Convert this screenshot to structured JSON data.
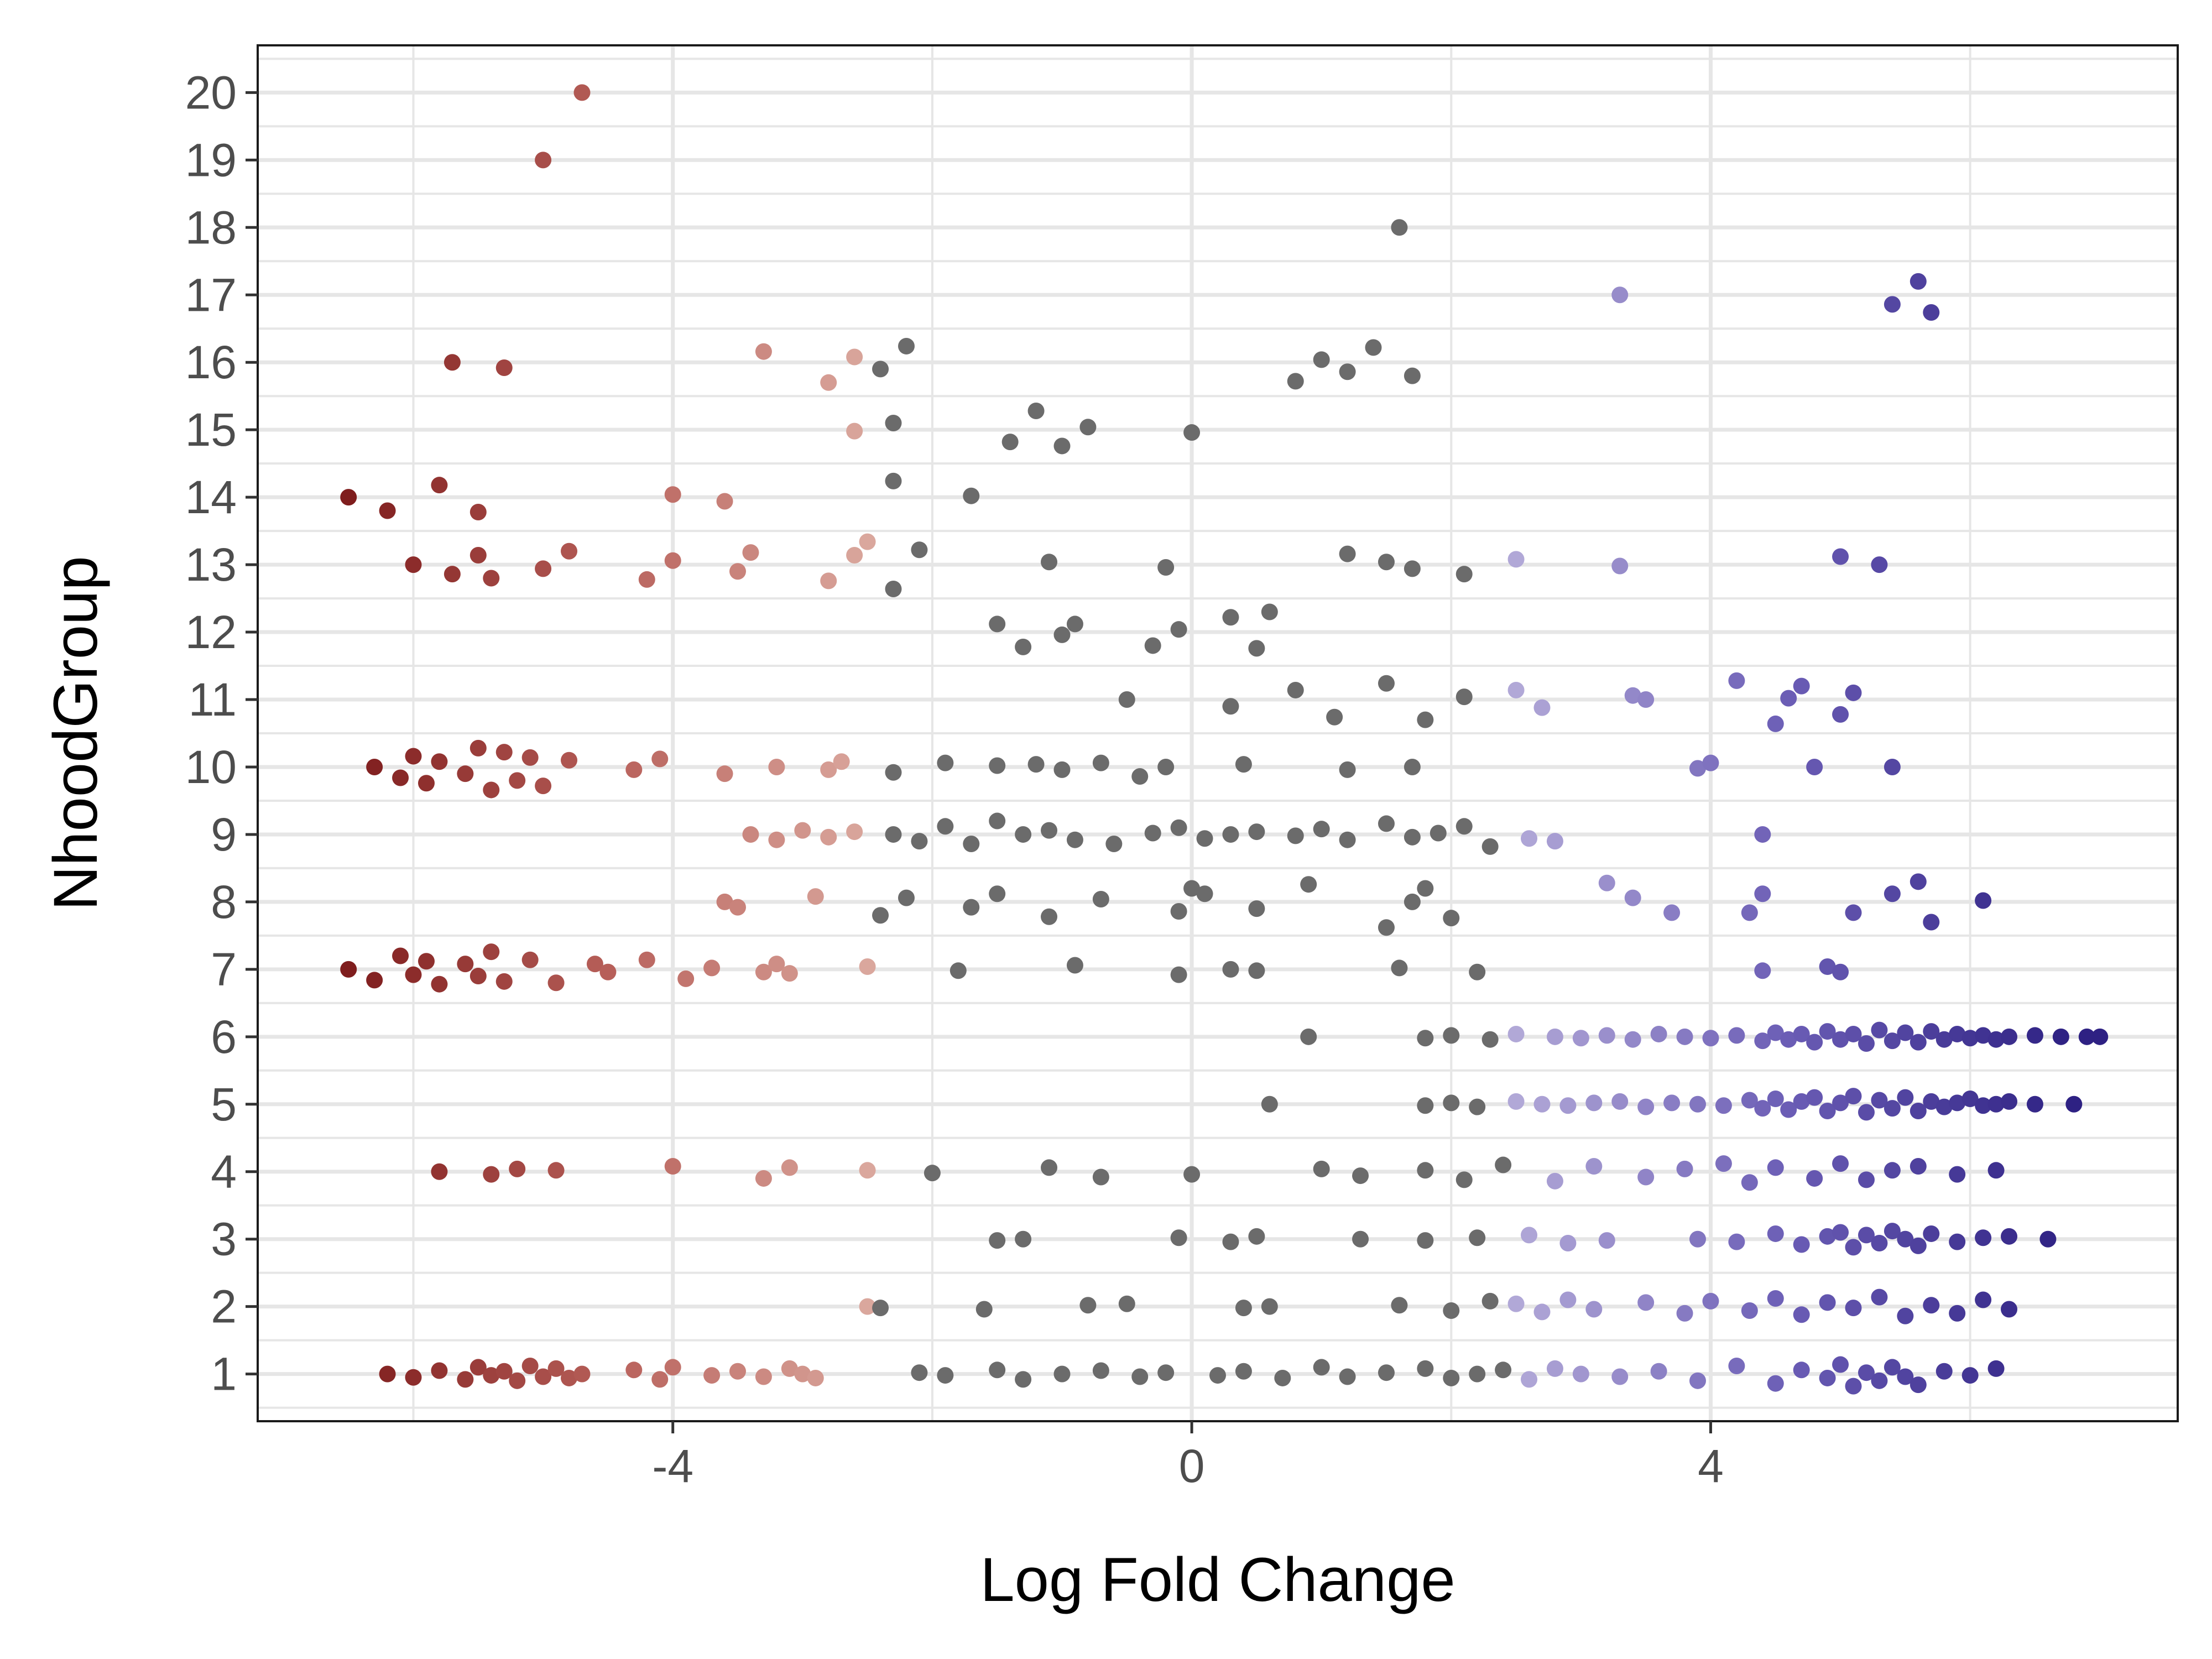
{
  "chart_data": {
    "type": "scatter",
    "title": "",
    "xlabel": "Log Fold Change",
    "ylabel": "NhoodGroup",
    "xlim": [
      -7.2,
      7.6
    ],
    "ylim": [
      0.3,
      20.7
    ],
    "x_ticks": [
      -4,
      0,
      4
    ],
    "x_tick_labels": [
      "-4",
      "0",
      "4"
    ],
    "y_ticks": [
      1,
      2,
      3,
      4,
      5,
      6,
      7,
      8,
      9,
      10,
      11,
      12,
      13,
      14,
      15,
      16,
      17,
      18,
      19,
      20
    ],
    "y_tick_labels": [
      "1",
      "2",
      "3",
      "4",
      "5",
      "6",
      "7",
      "8",
      "9",
      "10",
      "11",
      "12",
      "13",
      "14",
      "15",
      "16",
      "17",
      "18",
      "19",
      "20"
    ],
    "grid": true,
    "legend": "none",
    "colors": {
      "neg_strong": "#7f1d1d",
      "neg_mid": "#b8615b",
      "neg_light": "#dba99f",
      "neutral": "#6b6b6b",
      "pos_light": "#b3aad8",
      "pos_mid": "#6b5db5",
      "pos_strong": "#2e2183",
      "grid": "#e6e6e6",
      "frame": "#1a1a1a"
    },
    "color_rule": "points with |logFC| < ~2.5 are grey; negative values shade from light pink to dark red, positive values from light lavender to dark indigo",
    "groups": [
      {
        "group": 1,
        "x": [
          -6.2,
          -6.0,
          -5.8,
          -5.6,
          -5.5,
          -5.4,
          -5.3,
          -5.2,
          -5.1,
          -5.0,
          -4.9,
          -4.8,
          -4.7,
          -4.3,
          -4.1,
          -4.0,
          -3.7,
          -3.5,
          -3.3,
          -3.1,
          -3.0,
          -2.9,
          -2.1,
          -1.9,
          -1.5,
          -1.3,
          -1.0,
          -0.7,
          -0.4,
          -0.2,
          0.2,
          0.4,
          0.7,
          1.0,
          1.2,
          1.5,
          1.8,
          2.0,
          2.2,
          2.4,
          2.6,
          2.8,
          3.0,
          3.3,
          3.6,
          3.9,
          4.2,
          4.5,
          4.7,
          4.9,
          5.0,
          5.1,
          5.2,
          5.3,
          5.4,
          5.5,
          5.6,
          5.8,
          6.0,
          6.2
        ],
        "y": [
          1.0,
          0.95,
          1.05,
          0.92,
          1.1,
          0.98,
          1.04,
          0.9,
          1.12,
          0.96,
          1.08,
          0.94,
          1.0,
          1.06,
          0.92,
          1.1,
          0.98,
          1.04,
          0.96,
          1.08,
          1.0,
          0.94,
          1.02,
          0.98,
          1.06,
          0.92,
          1.0,
          1.05,
          0.96,
          1.02,
          0.98,
          1.04,
          0.94,
          1.1,
          0.96,
          1.02,
          1.08,
          0.94,
          1.0,
          1.06,
          0.92,
          1.08,
          1.0,
          0.96,
          1.04,
          0.9,
          1.12,
          0.86,
          1.06,
          0.94,
          1.14,
          0.82,
          1.02,
          0.9,
          1.1,
          0.96,
          0.84,
          1.04,
          0.98,
          1.08
        ]
      },
      {
        "group": 2,
        "x": [
          -2.5,
          -2.4,
          -1.6,
          -0.8,
          -0.5,
          0.4,
          0.6,
          1.6,
          2.0,
          2.3,
          2.5,
          2.7,
          2.9,
          3.1,
          3.5,
          3.8,
          4.0,
          4.3,
          4.5,
          4.7,
          4.9,
          5.1,
          5.3,
          5.5,
          5.7,
          5.9,
          6.1,
          6.3
        ],
        "y": [
          2.0,
          1.98,
          1.96,
          2.02,
          2.04,
          1.98,
          2.0,
          2.02,
          1.94,
          2.08,
          2.04,
          1.92,
          2.1,
          1.96,
          2.06,
          1.9,
          2.08,
          1.94,
          2.12,
          1.88,
          2.06,
          1.98,
          2.14,
          1.86,
          2.02,
          1.9,
          2.1,
          1.96
        ]
      },
      {
        "group": 3,
        "x": [
          -1.5,
          -1.3,
          -0.1,
          0.3,
          0.5,
          1.3,
          1.8,
          2.2,
          2.6,
          2.9,
          3.2,
          3.9,
          4.2,
          4.5,
          4.7,
          4.9,
          5.0,
          5.1,
          5.2,
          5.3,
          5.4,
          5.5,
          5.6,
          5.7,
          5.9,
          6.1,
          6.3,
          6.6
        ],
        "y": [
          2.98,
          3.0,
          3.02,
          2.96,
          3.04,
          3.0,
          2.98,
          3.02,
          3.06,
          2.94,
          2.98,
          3.0,
          2.96,
          3.08,
          2.92,
          3.04,
          3.1,
          2.88,
          3.06,
          2.94,
          3.12,
          3.0,
          2.9,
          3.08,
          2.96,
          3.02,
          3.04,
          3.0
        ]
      },
      {
        "group": 4,
        "x": [
          -5.8,
          -5.4,
          -5.2,
          -4.9,
          -4.0,
          -3.3,
          -3.1,
          -2.5,
          -2.0,
          -1.1,
          -0.7,
          0.0,
          1.0,
          1.3,
          1.8,
          2.1,
          2.4,
          2.8,
          3.1,
          3.5,
          3.8,
          4.1,
          4.3,
          4.5,
          4.8,
          5.0,
          5.2,
          5.4,
          5.6,
          5.9,
          6.2
        ],
        "y": [
          4.0,
          3.96,
          4.04,
          4.02,
          4.08,
          3.9,
          4.06,
          4.02,
          3.98,
          4.06,
          3.92,
          3.96,
          4.04,
          3.94,
          4.02,
          3.88,
          4.1,
          3.86,
          4.08,
          3.92,
          4.04,
          4.12,
          3.84,
          4.06,
          3.9,
          4.12,
          3.88,
          4.02,
          4.08,
          3.96,
          4.02
        ]
      },
      {
        "group": 5,
        "x": [
          0.6,
          1.8,
          2.0,
          2.2,
          2.5,
          2.7,
          2.9,
          3.1,
          3.3,
          3.5,
          3.7,
          3.9,
          4.1,
          4.3,
          4.4,
          4.5,
          4.6,
          4.7,
          4.8,
          4.9,
          5.0,
          5.1,
          5.2,
          5.3,
          5.4,
          5.5,
          5.6,
          5.7,
          5.8,
          5.9,
          6.0,
          6.1,
          6.2,
          6.3,
          6.5,
          6.8
        ],
        "y": [
          5.0,
          4.98,
          5.02,
          4.96,
          5.04,
          5.0,
          4.98,
          5.02,
          5.04,
          4.96,
          5.02,
          5.0,
          4.98,
          5.06,
          4.94,
          5.08,
          4.92,
          5.04,
          5.1,
          4.9,
          5.02,
          5.12,
          4.88,
          5.06,
          4.94,
          5.1,
          4.9,
          5.04,
          4.96,
          5.02,
          5.08,
          4.98,
          5.0,
          5.04,
          5.0,
          5.0
        ]
      },
      {
        "group": 6,
        "x": [
          0.9,
          1.8,
          2.0,
          2.3,
          2.5,
          2.8,
          3.0,
          3.2,
          3.4,
          3.6,
          3.8,
          4.0,
          4.2,
          4.4,
          4.5,
          4.6,
          4.7,
          4.8,
          4.9,
          5.0,
          5.1,
          5.2,
          5.3,
          5.4,
          5.5,
          5.6,
          5.7,
          5.8,
          5.9,
          6.0,
          6.1,
          6.2,
          6.3,
          6.5,
          6.7,
          6.9,
          7.0
        ],
        "y": [
          6.0,
          5.98,
          6.02,
          5.96,
          6.04,
          6.0,
          5.98,
          6.02,
          5.96,
          6.04,
          6.0,
          5.98,
          6.02,
          5.94,
          6.06,
          5.96,
          6.04,
          5.92,
          6.08,
          5.96,
          6.04,
          5.9,
          6.1,
          5.94,
          6.06,
          5.92,
          6.08,
          5.96,
          6.04,
          5.98,
          6.02,
          5.96,
          6.0,
          6.02,
          6.0,
          6.0,
          6.0
        ]
      },
      {
        "group": 7,
        "x": [
          -6.5,
          -6.3,
          -6.1,
          -6.0,
          -5.9,
          -5.8,
          -5.6,
          -5.5,
          -5.4,
          -5.3,
          -5.1,
          -4.9,
          -4.6,
          -4.5,
          -4.2,
          -3.9,
          -3.7,
          -3.3,
          -3.2,
          -3.1,
          -2.5,
          -1.8,
          -0.9,
          -0.1,
          0.3,
          0.5,
          1.6,
          2.2,
          4.4,
          4.9,
          5.0
        ],
        "y": [
          7.0,
          6.84,
          7.2,
          6.92,
          7.12,
          6.78,
          7.08,
          6.9,
          7.26,
          6.82,
          7.14,
          6.8,
          7.08,
          6.96,
          7.14,
          6.86,
          7.02,
          6.96,
          7.08,
          6.94,
          7.04,
          6.98,
          7.06,
          6.92,
          7.0,
          6.98,
          7.02,
          6.96,
          6.98,
          7.04,
          6.96
        ]
      },
      {
        "group": 8,
        "x": [
          -3.6,
          -3.5,
          -2.9,
          -2.4,
          -2.2,
          -1.7,
          -1.5,
          -1.1,
          -0.7,
          -0.1,
          0.0,
          0.1,
          0.5,
          0.9,
          1.5,
          1.7,
          1.8,
          2.0,
          3.2,
          3.4,
          3.7,
          4.3,
          4.4,
          5.1,
          5.4,
          5.6,
          5.7,
          6.1
        ],
        "y": [
          8.0,
          7.92,
          8.08,
          7.8,
          8.06,
          7.92,
          8.12,
          7.78,
          8.04,
          7.86,
          8.2,
          8.12,
          7.9,
          8.26,
          7.62,
          8.0,
          8.2,
          7.76,
          8.28,
          8.06,
          7.84,
          7.84,
          8.12,
          7.84,
          8.12,
          8.3,
          7.7,
          8.02
        ]
      },
      {
        "group": 9,
        "x": [
          -3.4,
          -3.2,
          -3.0,
          -2.8,
          -2.6,
          -2.3,
          -2.1,
          -1.9,
          -1.7,
          -1.5,
          -1.3,
          -1.1,
          -0.9,
          -0.6,
          -0.3,
          -0.1,
          0.1,
          0.3,
          0.5,
          0.8,
          1.0,
          1.2,
          1.5,
          1.7,
          1.9,
          2.1,
          2.3,
          2.6,
          2.8,
          4.4
        ],
        "y": [
          9.0,
          8.92,
          9.06,
          8.96,
          9.04,
          9.0,
          8.9,
          9.12,
          8.86,
          9.2,
          9.0,
          9.06,
          8.92,
          8.86,
          9.02,
          9.1,
          8.94,
          9.0,
          9.04,
          8.98,
          9.08,
          8.92,
          9.16,
          8.96,
          9.02,
          9.12,
          8.82,
          8.94,
          8.9,
          9.0
        ]
      },
      {
        "group": 10,
        "x": [
          -6.3,
          -6.1,
          -6.0,
          -5.9,
          -5.8,
          -5.6,
          -5.5,
          -5.4,
          -5.3,
          -5.2,
          -5.1,
          -5.0,
          -4.8,
          -4.3,
          -4.1,
          -3.6,
          -3.2,
          -2.8,
          -2.7,
          -2.3,
          -1.9,
          -1.5,
          -1.2,
          -1.0,
          -0.7,
          -0.4,
          -0.2,
          0.4,
          1.2,
          1.7,
          3.9,
          4.0,
          4.8,
          5.4
        ],
        "y": [
          10.0,
          9.84,
          10.16,
          9.76,
          10.08,
          9.9,
          10.28,
          9.66,
          10.22,
          9.8,
          10.14,
          9.72,
          10.1,
          9.96,
          10.12,
          9.9,
          10.0,
          9.96,
          10.08,
          9.92,
          10.06,
          10.02,
          10.04,
          9.96,
          10.06,
          9.86,
          10.0,
          10.04,
          9.96,
          10.0,
          9.98,
          10.06,
          10.0,
          10.0
        ]
      },
      {
        "group": 11,
        "x": [
          -0.5,
          0.3,
          0.8,
          1.1,
          1.5,
          1.8,
          2.1,
          2.5,
          2.7,
          3.4,
          3.5,
          4.2,
          4.5,
          4.6,
          4.7,
          5.0,
          5.1
        ],
        "y": [
          11.0,
          10.9,
          11.14,
          10.74,
          11.24,
          10.7,
          11.04,
          11.14,
          10.88,
          11.06,
          11.0,
          11.28,
          10.64,
          11.02,
          11.2,
          10.78,
          11.1
        ]
      },
      {
        "group": 12,
        "x": [
          -1.5,
          -1.3,
          -1.0,
          -0.9,
          -0.3,
          -0.1,
          0.3,
          0.5,
          0.6
        ],
        "y": [
          12.12,
          11.78,
          11.96,
          12.12,
          11.8,
          12.04,
          12.22,
          11.76,
          12.3
        ]
      },
      {
        "group": 13,
        "x": [
          -6.0,
          -5.7,
          -5.5,
          -5.4,
          -5.0,
          -4.8,
          -4.2,
          -4.0,
          -3.5,
          -3.4,
          -2.8,
          -2.6,
          -2.5,
          -2.3,
          -2.1,
          -1.1,
          -0.2,
          1.2,
          1.5,
          1.7,
          2.1,
          2.5,
          3.3,
          5.0,
          5.3
        ],
        "y": [
          13.0,
          12.86,
          13.14,
          12.8,
          12.94,
          13.2,
          12.78,
          13.06,
          12.9,
          13.18,
          12.76,
          13.14,
          13.34,
          12.64,
          13.22,
          13.04,
          12.96,
          13.16,
          13.04,
          12.94,
          12.86,
          13.08,
          12.98,
          13.12,
          13.0
        ]
      },
      {
        "group": 14,
        "x": [
          -6.5,
          -6.2,
          -5.8,
          -5.5,
          -4.0,
          -3.6,
          -2.3,
          -1.7
        ],
        "y": [
          14.0,
          13.8,
          14.18,
          13.78,
          14.04,
          13.94,
          14.24,
          14.02
        ]
      },
      {
        "group": 15,
        "x": [
          -2.6,
          -2.3,
          -1.4,
          -1.2,
          -1.0,
          -0.8,
          0.0
        ],
        "y": [
          14.98,
          15.1,
          14.82,
          15.28,
          14.76,
          15.04,
          14.96
        ]
      },
      {
        "group": 16,
        "x": [
          -5.7,
          -5.3,
          -3.3,
          -2.8,
          -2.6,
          -2.4,
          -2.2,
          0.8,
          1.0,
          1.2,
          1.4,
          1.7
        ],
        "y": [
          16.0,
          15.92,
          16.16,
          15.7,
          16.08,
          15.9,
          16.24,
          15.72,
          16.04,
          15.86,
          16.22,
          15.8
        ]
      },
      {
        "group": 17,
        "x": [
          3.3,
          5.4,
          5.6,
          5.7
        ],
        "y": [
          17.0,
          16.86,
          17.2,
          16.74
        ]
      },
      {
        "group": 18,
        "x": [
          1.6
        ],
        "y": [
          18.0
        ]
      },
      {
        "group": 19,
        "x": [
          -5.0
        ],
        "y": [
          19.0
        ]
      },
      {
        "group": 20,
        "x": [
          -4.7
        ],
        "y": [
          20.0
        ]
      }
    ]
  }
}
